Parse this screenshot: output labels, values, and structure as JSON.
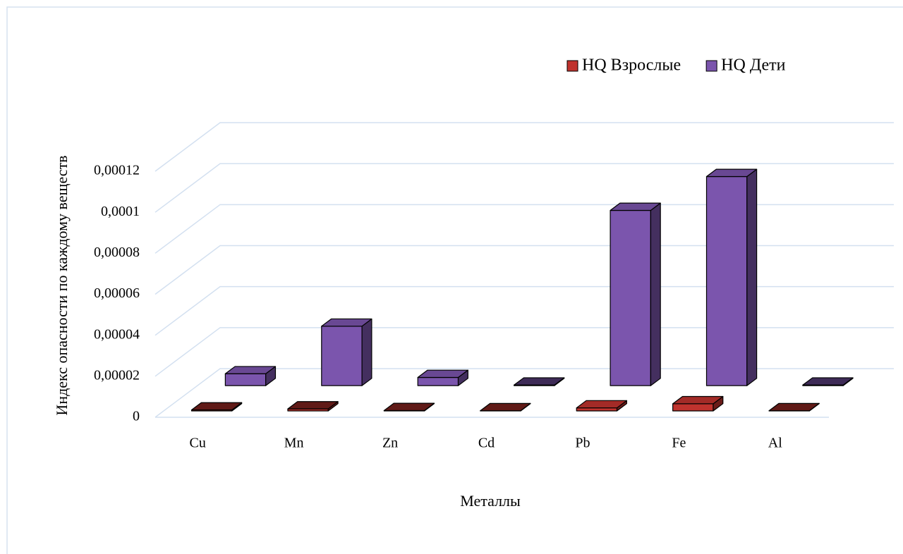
{
  "chart_data": {
    "type": "bar3d",
    "x_label": "Металлы",
    "y_label": "Индекс опасности по каждому веществ",
    "categories": [
      "Cu",
      "Mn",
      "Zn",
      "Cd",
      "Pb",
      "Fe",
      "Al"
    ],
    "series": [
      {
        "name": "HQ Взрослые",
        "color": "#c0332e",
        "values": [
          5e-07,
          1e-06,
          2e-07,
          1e-07,
          1.5e-06,
          3.5e-06,
          1e-07
        ]
      },
      {
        "name": "HQ Дети",
        "color": "#7b55ad",
        "values": [
          5.8e-06,
          2.9e-05,
          4e-06,
          3e-07,
          8.55e-05,
          0.000102,
          3e-07
        ]
      }
    ],
    "ylim": [
      0,
      0.00012
    ],
    "yticks": [
      0,
      {
        "value": 2e-05,
        "label": "0,00002"
      },
      {
        "value": 4e-05,
        "label": "0,00004"
      },
      {
        "value": 6e-05,
        "label": "0,00006"
      },
      {
        "value": 8e-05,
        "label": "0,00008"
      },
      {
        "value": 0.0001,
        "label": "0,0001"
      },
      {
        "value": 0.00012,
        "label": "0,00012"
      }
    ],
    "grid": true,
    "legend": "top-right"
  }
}
